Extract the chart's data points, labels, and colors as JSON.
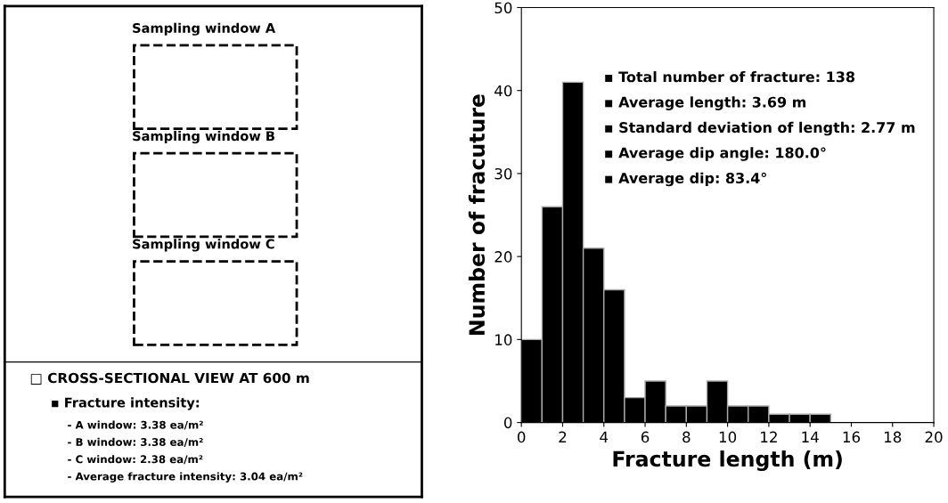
{
  "chart_data": [
    {
      "type": "other",
      "title": "□ CROSS-SECTIONAL VIEW AT 600 m",
      "subtitle": "▪ Fracture intensity:",
      "annotations": [
        "Sampling window A",
        "Sampling window B",
        "Sampling window C",
        "- A window: 3.38 ea/m²",
        "- B window: 3.38 ea/m²",
        "- C window: 2.38 ea/m²",
        "- Average fracture intensity: 3.04 ea/m²"
      ]
    },
    {
      "type": "histogram",
      "xlabel": "Fracture length (m)",
      "ylabel": "Number of fracuture",
      "bins": [
        0,
        1,
        2,
        3,
        4,
        5,
        6,
        7,
        8,
        9,
        10,
        11,
        12,
        13,
        14,
        15
      ],
      "values": [
        10,
        26,
        41,
        21,
        16,
        3,
        5,
        2,
        2,
        5,
        2,
        2,
        1,
        1,
        1
      ],
      "color": "#000000",
      "xlim": [
        0,
        20
      ],
      "xticks": [
        0,
        2,
        4,
        6,
        8,
        10,
        12,
        14,
        16,
        18,
        20
      ],
      "ylim": [
        0,
        50
      ],
      "yticks": [
        0,
        10,
        20,
        30,
        40,
        50
      ],
      "grid": false,
      "annotations": [
        "▪ Total number of fracture: 138",
        "▪ Average length: 3.69 m",
        "▪ Standard deviation of length: 2.77 m",
        "▪ Average dip angle: 180.0°",
        "▪ Average dip: 83.4°"
      ]
    }
  ]
}
